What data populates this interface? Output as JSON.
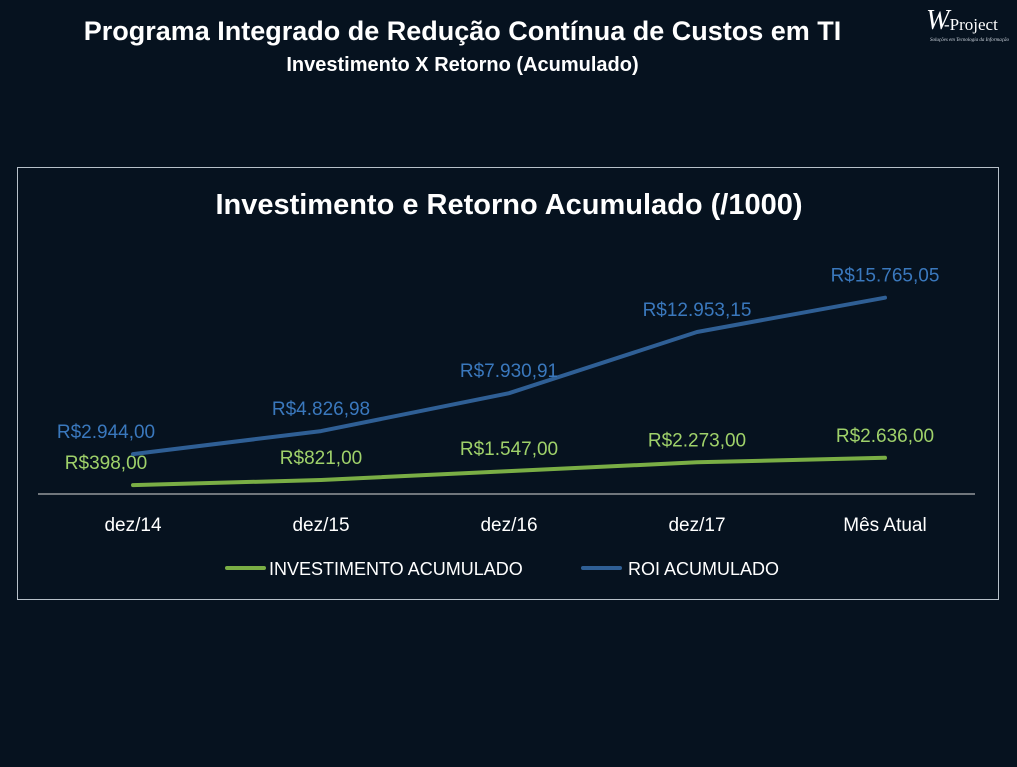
{
  "page": {
    "title": "Programa Integrado de Redução Contínua de Custos em TI",
    "subtitle": "Investimento X Retorno (Acumulado)"
  },
  "logo": {
    "text": "W-Project",
    "tagline": "Soluções em Tecnologia da Informação"
  },
  "chart_data": {
    "type": "line",
    "title": "Investimento e Retorno Acumulado (/1000)",
    "categories": [
      "dez/14",
      "dez/15",
      "dez/16",
      "dez/17",
      "Mês Atual"
    ],
    "series": [
      {
        "name": "INVESTIMENTO ACUMULADO",
        "color": "#7aae45",
        "label_color": "#9fd16a",
        "values": [
          398.0,
          821.0,
          1547.0,
          2273.0,
          2636.0
        ],
        "labels": [
          "R$398,00",
          "R$821,00",
          "R$1.547,00",
          "R$2.273,00",
          "R$2.636,00"
        ]
      },
      {
        "name": "ROI ACUMULADO",
        "color": "#2f5f95",
        "label_color": "#3a78bd",
        "values": [
          2944.0,
          4826.98,
          7930.91,
          12953.15,
          15765.05
        ],
        "labels": [
          "R$2.944,00",
          "R$4.826,98",
          "R$7.930,91",
          "R$12.953,15",
          "R$15.765,05"
        ]
      }
    ],
    "ylim": [
      0,
      17500
    ],
    "legend_position": "bottom",
    "grid": false,
    "axis_line_color": "#d9d9d9",
    "text_color": "#ffffff"
  }
}
